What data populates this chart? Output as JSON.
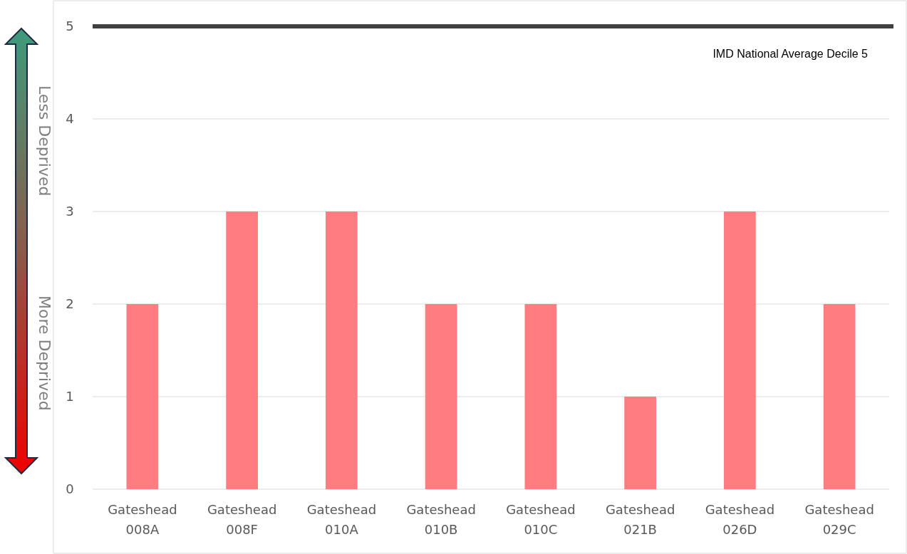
{
  "chart_data": {
    "type": "bar",
    "categories": [
      "Gateshead 008A",
      "Gateshead 008F",
      "Gateshead 010A",
      "Gateshead 010B",
      "Gateshead 010C",
      "Gateshead 021B",
      "Gateshead 026D",
      "Gateshead 029C"
    ],
    "values": [
      2,
      3,
      3,
      2,
      2,
      1,
      3,
      2
    ],
    "color": "#ff7c80",
    "ylim": [
      0,
      5
    ],
    "yticks": [
      0,
      1,
      2,
      3,
      4,
      5
    ],
    "grid": "y",
    "ref_lines": [
      {
        "axis": "y",
        "value": 5,
        "label": "IMD National Average Decile 5",
        "color": "#404040"
      }
    ],
    "annotations": [
      "Less Deprived",
      "More Deprived"
    ]
  }
}
